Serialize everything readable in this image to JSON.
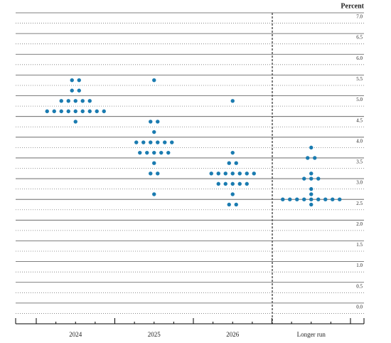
{
  "chart_data": {
    "type": "dot",
    "unit_label": "Percent",
    "color": "#1a7bb0",
    "ylim": [
      -0.5,
      7.0
    ],
    "yticks": [
      {
        "value": 0,
        "label": "0.0"
      },
      {
        "value": 0.5,
        "label": "0.5"
      },
      {
        "value": 1,
        "label": "1.0"
      },
      {
        "value": 1.5,
        "label": "1.5"
      },
      {
        "value": 2,
        "label": "2.0"
      },
      {
        "value": 2.5,
        "label": "2.5"
      },
      {
        "value": 3,
        "label": "3.0"
      },
      {
        "value": 3.5,
        "label": "3.5"
      },
      {
        "value": 4,
        "label": "4.0"
      },
      {
        "value": 4.5,
        "label": "4.5"
      },
      {
        "value": 5,
        "label": "5.0"
      },
      {
        "value": 5.5,
        "label": "5.5"
      },
      {
        "value": 6,
        "label": "6.0"
      },
      {
        "value": 6.5,
        "label": "6.5"
      },
      {
        "value": 7,
        "label": "7.0"
      }
    ],
    "minor_ticks": [
      -0.25,
      0.25,
      0.75,
      1.25,
      1.75,
      2.25,
      2.75,
      3.25,
      3.75,
      4.25,
      4.75,
      5.25,
      5.75,
      6.25,
      6.75
    ],
    "columns": [
      {
        "label": "2024",
        "values": [
          5.375,
          5.375,
          5.125,
          5.125,
          4.875,
          4.875,
          4.875,
          4.875,
          4.875,
          4.625,
          4.625,
          4.625,
          4.625,
          4.625,
          4.625,
          4.625,
          4.625,
          4.625,
          4.375
        ]
      },
      {
        "label": "2025",
        "values": [
          5.375,
          4.375,
          4.375,
          4.125,
          3.875,
          3.875,
          3.875,
          3.875,
          3.875,
          3.875,
          3.625,
          3.625,
          3.625,
          3.625,
          3.625,
          3.375,
          3.125,
          3.125,
          2.625
        ]
      },
      {
        "label": "2026",
        "values": [
          4.875,
          3.625,
          3.375,
          3.375,
          3.125,
          3.125,
          3.125,
          3.125,
          3.125,
          3.125,
          3.125,
          2.875,
          2.875,
          2.875,
          2.875,
          2.875,
          2.625,
          2.375,
          2.375
        ]
      },
      {
        "label": "Longer run",
        "values": [
          3.75,
          3.5,
          3.5,
          3.125,
          3.0,
          3.0,
          3.0,
          2.75,
          2.625,
          2.5,
          2.5,
          2.5,
          2.5,
          2.5,
          2.5,
          2.5,
          2.5,
          2.5,
          2.375
        ]
      }
    ]
  }
}
